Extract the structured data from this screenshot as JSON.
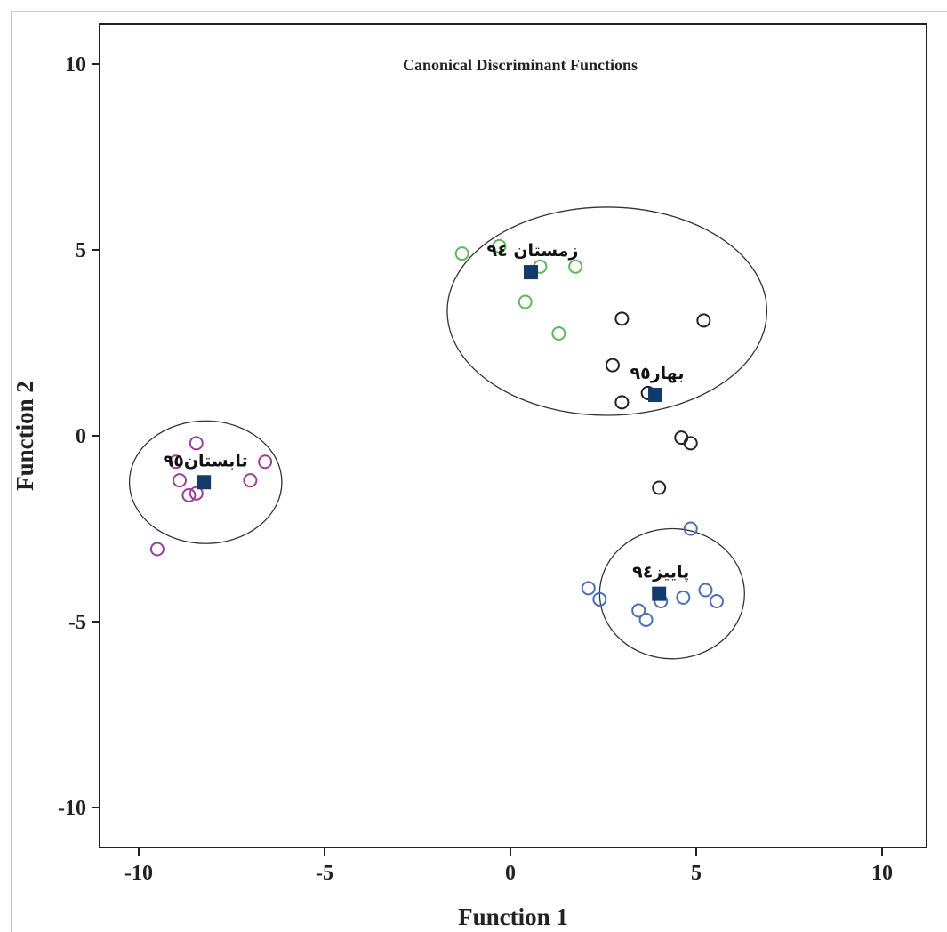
{
  "chart_data": {
    "type": "scatter",
    "title": "Canonical Discriminant Functions",
    "xlabel": "Function 1",
    "ylabel": "Function 2",
    "xlim": [
      -11,
      11
    ],
    "ylim": [
      -11,
      11
    ],
    "xticks": [
      -10,
      -5,
      0,
      5,
      10
    ],
    "yticks": [
      10,
      5,
      0,
      -5,
      -10
    ],
    "xtick_labels": [
      "-10",
      "-5",
      "0",
      "5",
      "10"
    ],
    "ytick_labels": [
      "10",
      "5",
      "0",
      "-5",
      "-10"
    ],
    "series": [
      {
        "group": "winter94",
        "color": "#5cb85c",
        "points": [
          [
            -1.3,
            4.9
          ],
          [
            -0.3,
            5.1
          ],
          [
            0.8,
            4.55
          ],
          [
            1.75,
            4.55
          ],
          [
            0.4,
            3.6
          ],
          [
            1.3,
            2.75
          ]
        ]
      },
      {
        "group": "spring95",
        "color": "#222222",
        "points": [
          [
            3.0,
            3.15
          ],
          [
            5.2,
            3.1
          ],
          [
            2.75,
            1.9
          ],
          [
            3.7,
            1.15
          ],
          [
            3.0,
            0.9
          ],
          [
            4.6,
            -0.05
          ],
          [
            4.85,
            -0.2
          ],
          [
            4.0,
            -1.4
          ]
        ]
      },
      {
        "group": "summer95",
        "color": "#9b3f9b",
        "points": [
          [
            -8.45,
            -0.2
          ],
          [
            -9.0,
            -0.7
          ],
          [
            -6.6,
            -0.7
          ],
          [
            -8.9,
            -1.2
          ],
          [
            -7.0,
            -1.2
          ],
          [
            -8.45,
            -1.55
          ],
          [
            -8.65,
            -1.6
          ],
          [
            -9.5,
            -3.05
          ]
        ]
      },
      {
        "group": "autumn94",
        "color": "#4a6fb5",
        "points": [
          [
            4.85,
            -2.5
          ],
          [
            2.1,
            -4.1
          ],
          [
            2.4,
            -4.4
          ],
          [
            5.25,
            -4.15
          ],
          [
            5.55,
            -4.45
          ],
          [
            3.45,
            -4.7
          ],
          [
            3.65,
            -4.95
          ],
          [
            4.05,
            -4.45
          ],
          [
            4.65,
            -4.35
          ]
        ]
      }
    ],
    "centroids": [
      {
        "group": "winter94",
        "label": "زمستان ۹٤",
        "x": 0.55,
        "y": 4.4
      },
      {
        "group": "spring95",
        "label": "بهار۹٥",
        "x": 3.9,
        "y": 1.1
      },
      {
        "group": "summer95",
        "label": "تابستان۹٥",
        "x": -8.25,
        "y": -1.25
      },
      {
        "group": "autumn94",
        "label": "پاییز۹٤",
        "x": 4.0,
        "y": -4.25
      }
    ],
    "ellipses": [
      {
        "cx": 2.6,
        "cy": 3.35,
        "rx": 4.3,
        "ry": 2.8
      },
      {
        "cx": -8.2,
        "cy": -1.25,
        "rx": 2.05,
        "ry": 1.65
      },
      {
        "cx": 4.35,
        "cy": -4.25,
        "rx": 1.95,
        "ry": 1.75
      }
    ],
    "centroid_color": "#123a6b",
    "grid": false,
    "legend": "none"
  }
}
